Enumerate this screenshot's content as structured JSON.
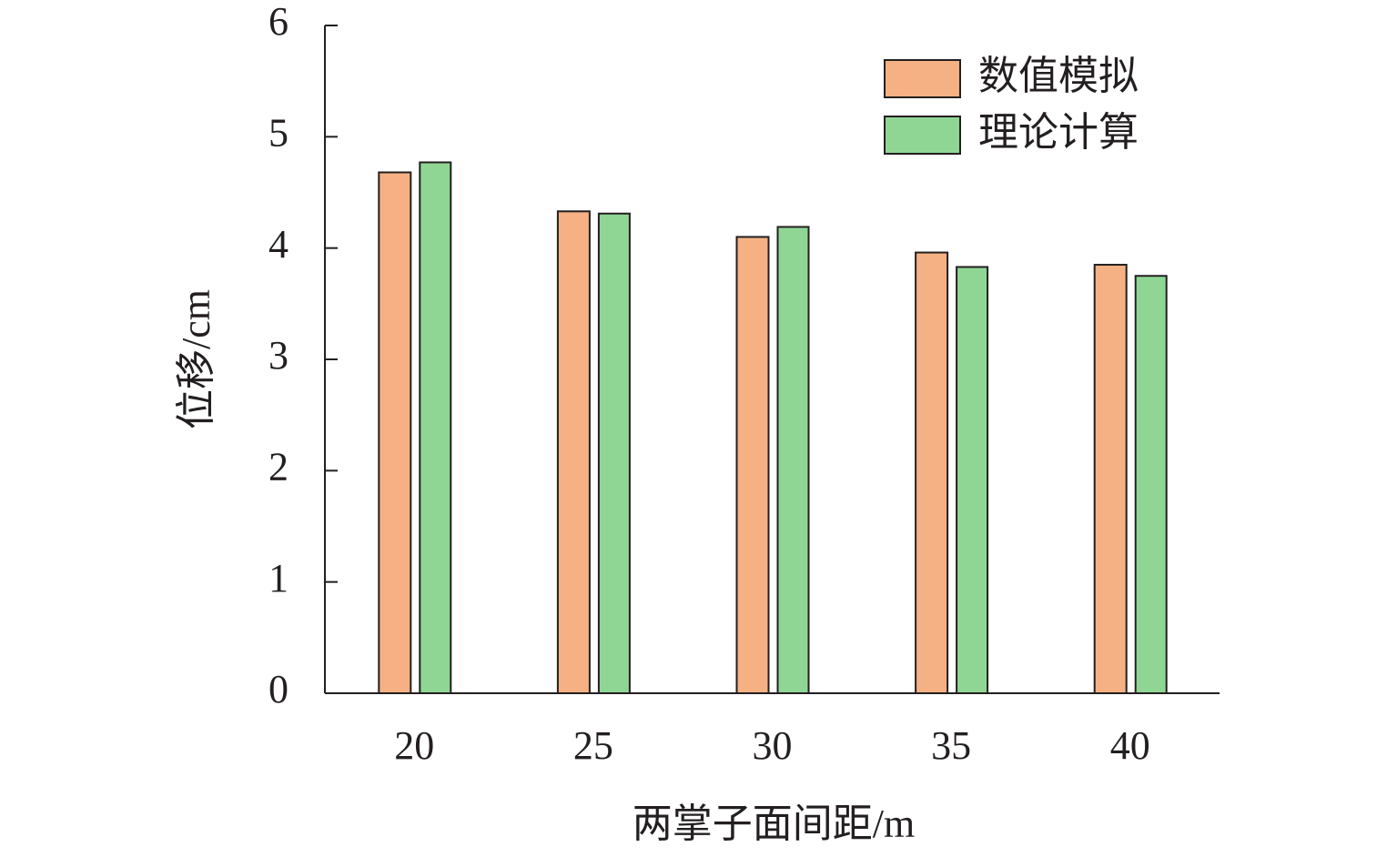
{
  "chart_data": {
    "type": "bar",
    "x_label": "两掌子面间距/m",
    "y_label": "位移/cm",
    "categories": [
      "20",
      "25",
      "30",
      "35",
      "40"
    ],
    "series": [
      {
        "name": "数值模拟",
        "color": "#f5b183",
        "values": [
          4.68,
          4.33,
          4.1,
          3.96,
          3.85
        ]
      },
      {
        "name": "理论计算",
        "color": "#8fd694",
        "values": [
          4.77,
          4.31,
          4.19,
          3.83,
          3.75
        ]
      }
    ],
    "ylim": [
      0,
      6
    ],
    "yticks": [
      0,
      1,
      2,
      3,
      4,
      5,
      6
    ],
    "legend": "upper right"
  }
}
